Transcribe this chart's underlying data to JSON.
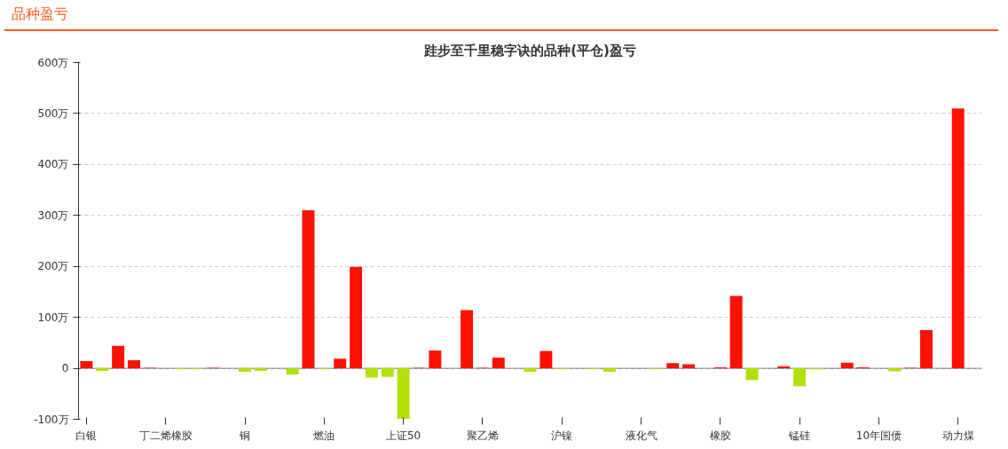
{
  "chart_data": {
    "type": "bar",
    "title": "跬步至千里稳字诀的品种(平仓)盈亏",
    "annotations": [
      "品种盈亏"
    ],
    "categories": [
      "白银",
      null,
      null,
      null,
      null,
      "丁二烯橡胶",
      null,
      null,
      null,
      null,
      "铜",
      null,
      null,
      null,
      null,
      "燃油",
      null,
      null,
      null,
      null,
      "上证50",
      null,
      null,
      null,
      null,
      "聚乙烯",
      null,
      null,
      null,
      null,
      "沪镍",
      null,
      null,
      null,
      null,
      "液化气",
      null,
      null,
      null,
      null,
      "橡胶",
      null,
      null,
      null,
      null,
      "锰硅",
      null,
      null,
      null,
      null,
      "10年国债",
      null,
      null,
      null,
      null,
      "动力煤",
      null
    ],
    "values": [
      14,
      -5,
      44,
      16,
      1,
      0,
      -1,
      -1,
      1,
      0,
      -7,
      -5,
      0,
      -12,
      310,
      -1,
      19,
      199,
      -18,
      -17,
      -99,
      1,
      35,
      0,
      114,
      1,
      21,
      0,
      -7,
      34,
      -1,
      0,
      -1,
      -7,
      0,
      0,
      -1,
      10,
      8,
      0,
      2,
      142,
      -23,
      0,
      4,
      -35,
      -2,
      0,
      11,
      2,
      0,
      -6,
      1,
      75,
      0,
      510,
      0
    ],
    "colors": [
      "#ff1100",
      "#b3e00b",
      "#ff1100",
      "#ff1100",
      "#ff1100",
      "#ff1100",
      "#b3e00b",
      "#b3e00b",
      "#ff1100",
      "#ff1100",
      "#b3e00b",
      "#b3e00b",
      "#ff1100",
      "#b3e00b",
      "#ff1100",
      "#b3e00b",
      "#ff1100",
      "#ff1100",
      "#b3e00b",
      "#b3e00b",
      "#b3e00b",
      "#ff1100",
      "#ff1100",
      "#ff1100",
      "#ff1100",
      "#ff1100",
      "#ff1100",
      "#ff1100",
      "#b3e00b",
      "#ff1100",
      "#b3e00b",
      "#ff1100",
      "#b3e00b",
      "#b3e00b",
      "#ff1100",
      "#ff1100",
      "#b3e00b",
      "#ff1100",
      "#ff1100",
      "#ff1100",
      "#ff1100",
      "#ff1100",
      "#b3e00b",
      "#ff1100",
      "#ff1100",
      "#b3e00b",
      "#b3e00b",
      "#ff1100",
      "#ff1100",
      "#ff1100",
      "#ff1100",
      "#b3e00b",
      "#ff1100",
      "#ff1100",
      "#ff1100",
      "#ff1100",
      "#ff1100"
    ],
    "ylim": [
      -100,
      600
    ],
    "yticks": [
      {
        "value": -100,
        "label": "-100万"
      },
      {
        "value": 0,
        "label": "0"
      },
      {
        "value": 100,
        "label": "100万"
      },
      {
        "value": 200,
        "label": "200万"
      },
      {
        "value": 300,
        "label": "300万"
      },
      {
        "value": 400,
        "label": "400万"
      },
      {
        "value": 500,
        "label": "500万"
      },
      {
        "value": 600,
        "label": "600万"
      }
    ],
    "grid": "y"
  }
}
